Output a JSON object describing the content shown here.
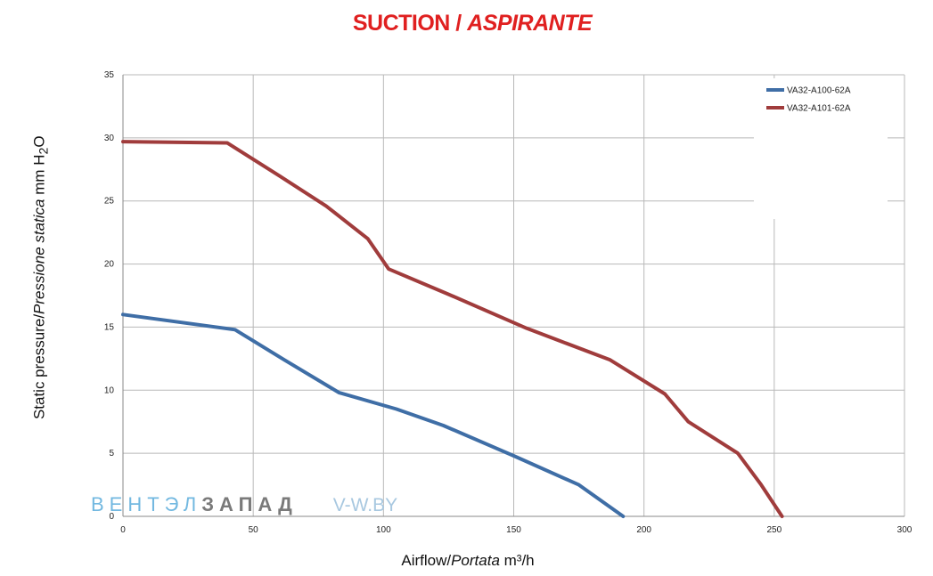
{
  "chart_data": {
    "type": "line",
    "title_main": "SUCTION / ",
    "title_italic": "ASPIRANTE",
    "ylabel_a": "Static pressure/",
    "ylabel_b": "Pressione statica",
    "ylabel_c": " mm  H",
    "ylabel_sub": "2",
    "ylabel_d": "O",
    "xlabel_a": "Airflow/",
    "xlabel_b": "Portata",
    "xlabel_c": "  m³/h",
    "xlim": [
      0,
      300
    ],
    "ylim": [
      0,
      35
    ],
    "x_ticks": [
      "0",
      "50",
      "100",
      "150",
      "200",
      "250",
      "300"
    ],
    "y_ticks": [
      "0",
      "5",
      "10",
      "15",
      "20",
      "25",
      "30",
      "35"
    ],
    "grid": true,
    "legend_position": "top-right",
    "series": [
      {
        "name": "VA32-A100-62A",
        "color": "#3f6ea6",
        "x": [
          0,
          43,
          62,
          83,
          105,
          123,
          150,
          175,
          192
        ],
        "y": [
          16.0,
          14.8,
          12.4,
          9.8,
          8.5,
          7.2,
          4.8,
          2.5,
          0.0
        ]
      },
      {
        "name": "VA32-A101-62A",
        "color": "#a03c3c",
        "x": [
          0,
          40,
          60,
          78,
          94,
          102,
          125,
          155,
          187,
          208,
          217,
          236,
          245,
          253
        ],
        "y": [
          29.7,
          29.6,
          27.0,
          24.6,
          22.0,
          19.6,
          17.6,
          14.9,
          12.4,
          9.7,
          7.5,
          5.0,
          2.5,
          0.0
        ]
      }
    ]
  },
  "watermark": {
    "part1": "ВЕНТЭЛ",
    "part2": "ЗАПАД",
    "part3": "V-W.BY"
  }
}
